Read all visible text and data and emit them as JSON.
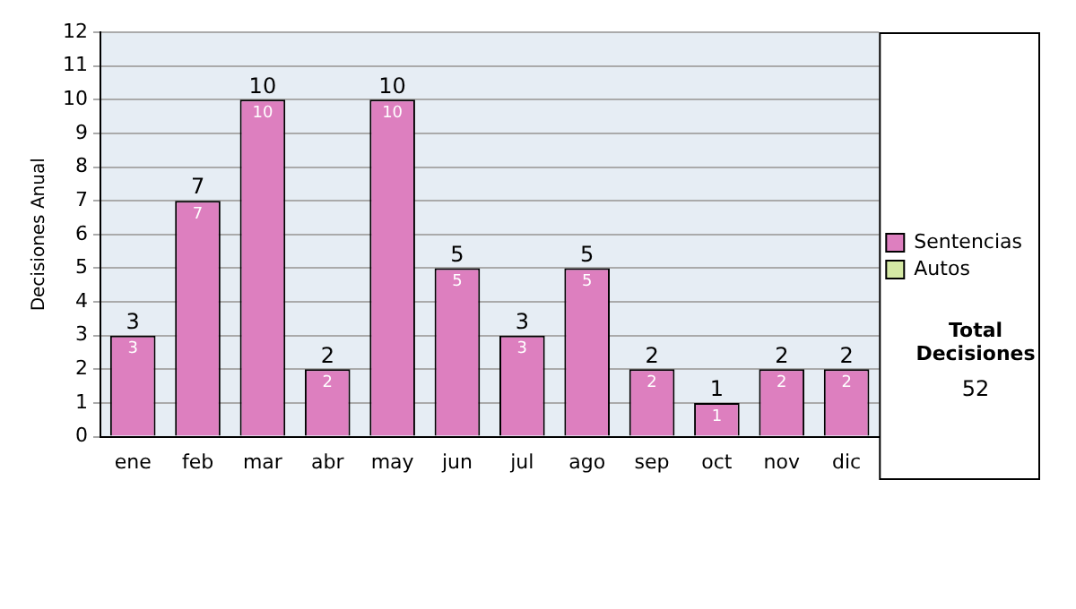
{
  "chart_data": {
    "type": "bar",
    "ylabel": "Decisiones Anual",
    "categories": [
      "ene",
      "feb",
      "mar",
      "abr",
      "may",
      "jun",
      "jul",
      "ago",
      "sep",
      "oct",
      "nov",
      "dic"
    ],
    "series": [
      {
        "name": "Sentencias",
        "color": "#dd7fbf",
        "values": [
          3,
          7,
          10,
          2,
          10,
          5,
          3,
          5,
          2,
          1,
          2,
          2
        ],
        "value_labels": [
          "3",
          "7",
          "10",
          "2",
          "10",
          "5",
          "3",
          "5",
          "2",
          "1",
          "2",
          "2"
        ]
      },
      {
        "name": "Autos",
        "color": "#d4e8a4",
        "values": [
          0,
          0,
          0,
          0,
          0,
          0,
          0,
          0,
          0,
          0,
          0,
          0
        ]
      }
    ],
    "stacked": true,
    "totals": [
      "3",
      "7",
      "10",
      "2",
      "10",
      "5",
      "3",
      "5",
      "2",
      "1",
      "2",
      "2"
    ],
    "ylim": [
      0,
      12
    ],
    "yticks": [
      0,
      1,
      2,
      3,
      4,
      5,
      6,
      7,
      8,
      9,
      10,
      11,
      12
    ],
    "grid": "y",
    "legend": "right",
    "annotations": [
      "Total Decisiones",
      "52"
    ]
  }
}
